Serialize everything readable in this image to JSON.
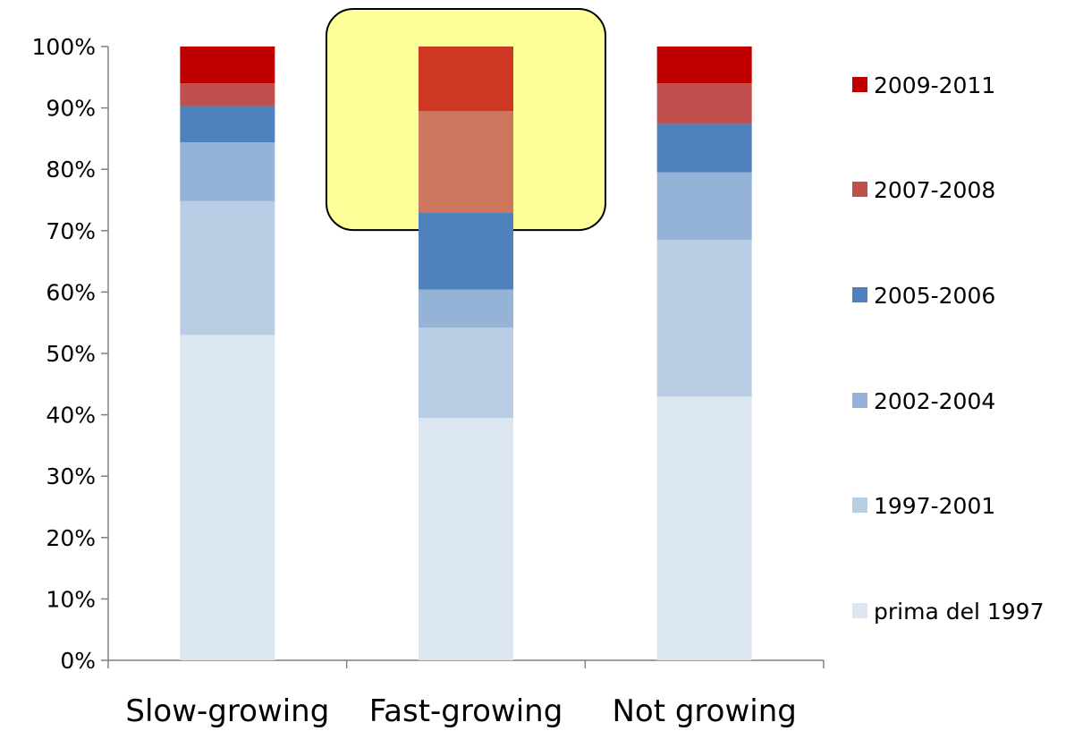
{
  "chart_data": {
    "type": "bar",
    "stacked": true,
    "percent_stacked": true,
    "categories": [
      "Slow-growing",
      "Fast-growing",
      "Not growing"
    ],
    "series": [
      {
        "name": "prima del 1997",
        "color": "#dce6f1",
        "values": [
          53,
          39.5,
          43
        ]
      },
      {
        "name": "1997-2001",
        "color": "#b8cce4",
        "values": [
          21.8,
          14.7,
          25.5
        ]
      },
      {
        "name": "2002-2004",
        "color": "#95b3d7",
        "values": [
          9.6,
          6.2,
          11
        ]
      },
      {
        "name": "2005-2006",
        "color": "#4f81bd",
        "values": [
          5.9,
          12.6,
          7.9
        ]
      },
      {
        "name": "2007-2008",
        "color": "#c0504d",
        "values": [
          3.7,
          16.5,
          6.6
        ]
      },
      {
        "name": "2009-2011",
        "color": "#c00000",
        "values": [
          6,
          10.5,
          6
        ]
      }
    ],
    "ylim": [
      0,
      100
    ],
    "yticks": [
      "0%",
      "10%",
      "20%",
      "30%",
      "40%",
      "50%",
      "60%",
      "70%",
      "80%",
      "90%",
      "100%"
    ],
    "xlabel": "",
    "ylabel": "",
    "title": "",
    "grid": false,
    "legend_position": "right",
    "legend_order": [
      "2009-2011",
      "2007-2008",
      "2005-2006",
      "2002-2004",
      "1997-2001",
      "prima del 1997"
    ],
    "highlight": {
      "category": "Fast-growing",
      "y_range": [
        72,
        100
      ],
      "fill_color": "#ffff99",
      "border_color": "#000000"
    }
  }
}
